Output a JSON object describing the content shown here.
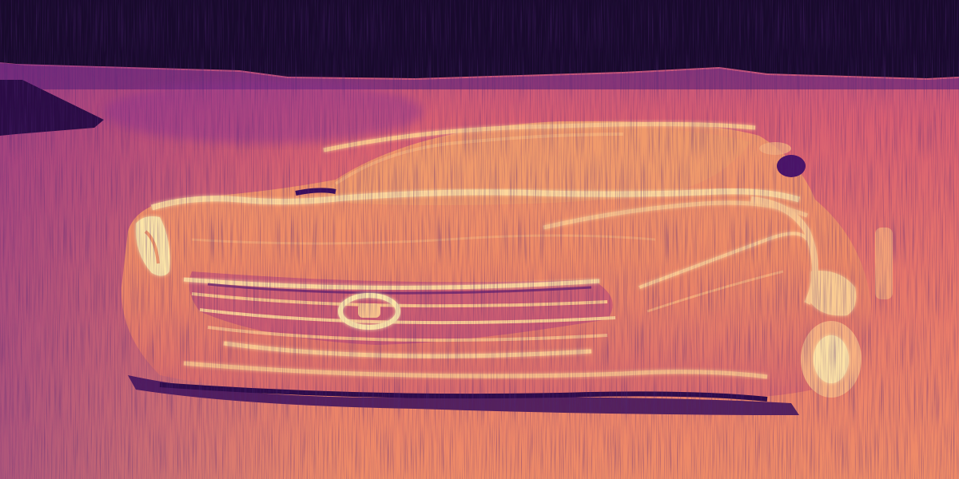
{
  "image": {
    "subject": "car",
    "style": "thermal false-color heat map",
    "colormap": "magma",
    "palette": {
      "background_dark": "#150828",
      "deep_purple": "#3a0f5c",
      "purple": "#7c2c8a",
      "magenta": "#b5407a",
      "coral": "#e46a6a",
      "orange": "#f4926a",
      "peach": "#fbc38a",
      "pale_yellow": "#fde6a8"
    }
  }
}
